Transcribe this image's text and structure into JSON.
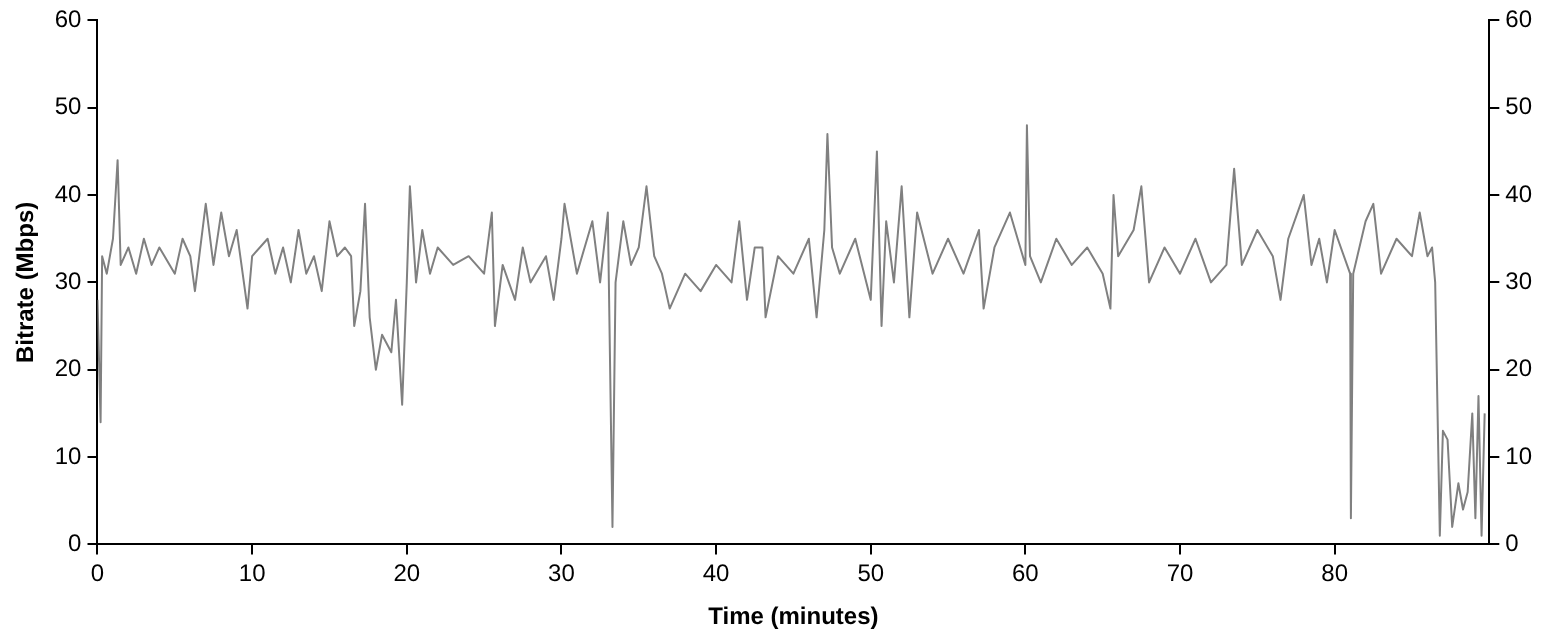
{
  "chart_data": {
    "type": "line",
    "xlabel": "Time (minutes)",
    "ylabel": "Bitrate (Mbps)",
    "xlim": [
      0,
      90
    ],
    "xticks": [
      0,
      10,
      20,
      30,
      40,
      50,
      60,
      70,
      80
    ],
    "ylim": [
      0,
      60
    ],
    "yticks": [
      0,
      10,
      20,
      30,
      40,
      50,
      60
    ],
    "y2lim": [
      0,
      60
    ],
    "y2ticks": [
      0,
      10,
      20,
      30,
      40,
      50,
      60
    ],
    "grid": false,
    "legend": false,
    "marker": "none",
    "line_style": "solid",
    "series": [
      {
        "color": "#808080",
        "x": [
          0,
          0.2,
          0.3,
          0.6,
          1,
          1.3,
          1.5,
          2,
          2.5,
          3,
          3.5,
          4,
          5,
          5.5,
          6,
          6.3,
          7,
          7.5,
          8,
          8.5,
          9,
          9.7,
          10,
          11,
          11.5,
          12,
          12.5,
          13,
          13.5,
          14,
          14.5,
          15,
          15.5,
          16,
          16.4,
          16.6,
          17,
          17.3,
          17.6,
          18,
          18.4,
          19,
          19.3,
          19.7,
          20,
          20.2,
          20.6,
          21,
          21.5,
          22,
          23,
          24,
          25,
          25.5,
          25.7,
          26.2,
          27,
          27.5,
          28,
          29,
          29.5,
          30,
          30.2,
          31,
          32,
          32.5,
          33,
          33.3,
          33.5,
          34,
          34.5,
          35,
          35.5,
          36,
          36.5,
          37,
          38,
          39,
          40,
          41,
          41.5,
          42,
          42.5,
          43,
          43.2,
          44,
          45,
          46,
          46.5,
          47,
          47.2,
          47.5,
          48,
          49,
          50,
          50.4,
          50.7,
          51,
          51.5,
          52,
          52.5,
          53,
          54,
          55,
          56,
          57,
          57.3,
          58,
          59,
          60,
          60.1,
          60.3,
          61,
          62,
          63,
          64,
          65,
          65.5,
          65.7,
          66,
          67,
          67.5,
          68,
          69,
          70,
          71,
          72,
          73,
          73.5,
          74,
          75,
          76,
          76.5,
          77,
          78,
          78.5,
          79,
          79.5,
          80,
          81,
          81.05,
          81.2,
          82,
          82.5,
          83,
          84,
          85,
          85.5,
          86,
          86.3,
          86.5,
          86.8,
          87,
          87.3,
          87.6,
          88,
          88.3,
          88.6,
          88.9,
          89.1,
          89.3,
          89.5,
          89.7
        ],
        "values": [
          28,
          14,
          33,
          31,
          35,
          44,
          32,
          34,
          31,
          35,
          32,
          34,
          31,
          35,
          33,
          29,
          39,
          32,
          38,
          33,
          36,
          27,
          33,
          35,
          31,
          34,
          30,
          36,
          31,
          33,
          29,
          37,
          33,
          34,
          33,
          25,
          29,
          39,
          26,
          20,
          24,
          22,
          28,
          16,
          30,
          41,
          30,
          36,
          31,
          34,
          32,
          33,
          31,
          38,
          25,
          32,
          28,
          34,
          30,
          33,
          28,
          35,
          39,
          31,
          37,
          30,
          38,
          2,
          30,
          37,
          32,
          34,
          41,
          33,
          31,
          27,
          31,
          29,
          32,
          30,
          37,
          28,
          34,
          34,
          26,
          33,
          31,
          35,
          26,
          36,
          47,
          34,
          31,
          35,
          28,
          45,
          25,
          37,
          30,
          41,
          26,
          38,
          31,
          35,
          31,
          36,
          27,
          34,
          38,
          32,
          48,
          33,
          30,
          35,
          32,
          34,
          31,
          27,
          40,
          33,
          36,
          41,
          30,
          34,
          31,
          35,
          30,
          32,
          43,
          32,
          36,
          33,
          28,
          35,
          40,
          32,
          35,
          30,
          36,
          31,
          3,
          31,
          37,
          39,
          31,
          35,
          33,
          38,
          33,
          34,
          30,
          1,
          13,
          12,
          2,
          7,
          4,
          6,
          15,
          3,
          17,
          1,
          15
        ]
      }
    ]
  }
}
